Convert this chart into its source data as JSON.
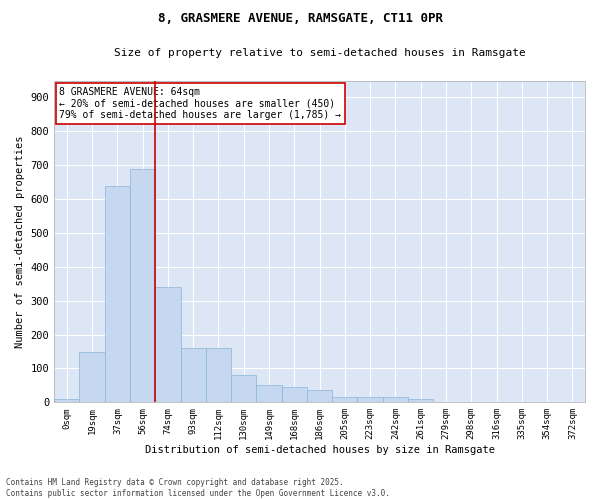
{
  "title": "8, GRASMERE AVENUE, RAMSGATE, CT11 0PR",
  "subtitle": "Size of property relative to semi-detached houses in Ramsgate",
  "xlabel": "Distribution of semi-detached houses by size in Ramsgate",
  "ylabel": "Number of semi-detached properties",
  "bar_color": "#c5d8f0",
  "bar_edge_color": "#8ab4d8",
  "background_color": "#dce6f5",
  "grid_color": "#ffffff",
  "vline_color": "#cc0000",
  "vline_x": 3.5,
  "annotation_text": "8 GRASMERE AVENUE: 64sqm\n← 20% of semi-detached houses are smaller (450)\n79% of semi-detached houses are larger (1,785) →",
  "annotation_box_color": "#ffffff",
  "annotation_edge_color": "#cc0000",
  "categories": [
    "0sqm",
    "19sqm",
    "37sqm",
    "56sqm",
    "74sqm",
    "93sqm",
    "112sqm",
    "130sqm",
    "149sqm",
    "168sqm",
    "186sqm",
    "205sqm",
    "223sqm",
    "242sqm",
    "261sqm",
    "279sqm",
    "298sqm",
    "316sqm",
    "335sqm",
    "354sqm",
    "372sqm"
  ],
  "values": [
    10,
    150,
    640,
    690,
    340,
    160,
    160,
    80,
    50,
    45,
    35,
    15,
    15,
    15,
    10,
    0,
    0,
    0,
    0,
    0,
    0
  ],
  "ylim": [
    0,
    950
  ],
  "yticks": [
    0,
    100,
    200,
    300,
    400,
    500,
    600,
    700,
    800,
    900
  ],
  "footnote": "Contains HM Land Registry data © Crown copyright and database right 2025.\nContains public sector information licensed under the Open Government Licence v3.0.",
  "figsize": [
    6.0,
    5.0
  ],
  "dpi": 100
}
